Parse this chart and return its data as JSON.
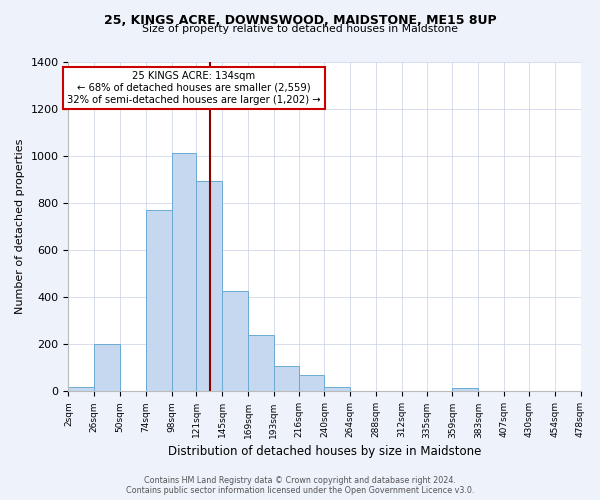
{
  "title": "25, KINGS ACRE, DOWNSWOOD, MAIDSTONE, ME15 8UP",
  "subtitle": "Size of property relative to detached houses in Maidstone",
  "xlabel": "Distribution of detached houses by size in Maidstone",
  "ylabel": "Number of detached properties",
  "footer_line1": "Contains HM Land Registry data © Crown copyright and database right 2024.",
  "footer_line2": "Contains public sector information licensed under the Open Government Licence v3.0.",
  "annotation_line1": "25 KINGS ACRE: 134sqm",
  "annotation_line2": "← 68% of detached houses are smaller (2,559)",
  "annotation_line3": "32% of semi-detached houses are larger (1,202) →",
  "bar_edges": [
    2,
    26,
    50,
    74,
    98,
    121,
    145,
    169,
    193,
    216,
    240,
    264,
    288,
    312,
    335,
    359,
    383,
    407,
    430,
    454,
    478
  ],
  "bar_heights": [
    20,
    200,
    0,
    770,
    1010,
    895,
    425,
    240,
    110,
    70,
    20,
    0,
    0,
    0,
    0,
    15,
    0,
    0,
    0,
    0
  ],
  "bar_color": "#c5d8f0",
  "bar_edge_color": "#6aaad4",
  "vline_x": 134,
  "vline_color": "#8b0000",
  "annotation_box_color": "#ffffff",
  "annotation_box_edge": "#cc0000",
  "ylim": [
    0,
    1400
  ],
  "yticks": [
    0,
    200,
    400,
    600,
    800,
    1000,
    1200,
    1400
  ],
  "bg_color": "#eef2fb",
  "plot_bg_color": "#ffffff",
  "grid_color": "#c8d0e8"
}
